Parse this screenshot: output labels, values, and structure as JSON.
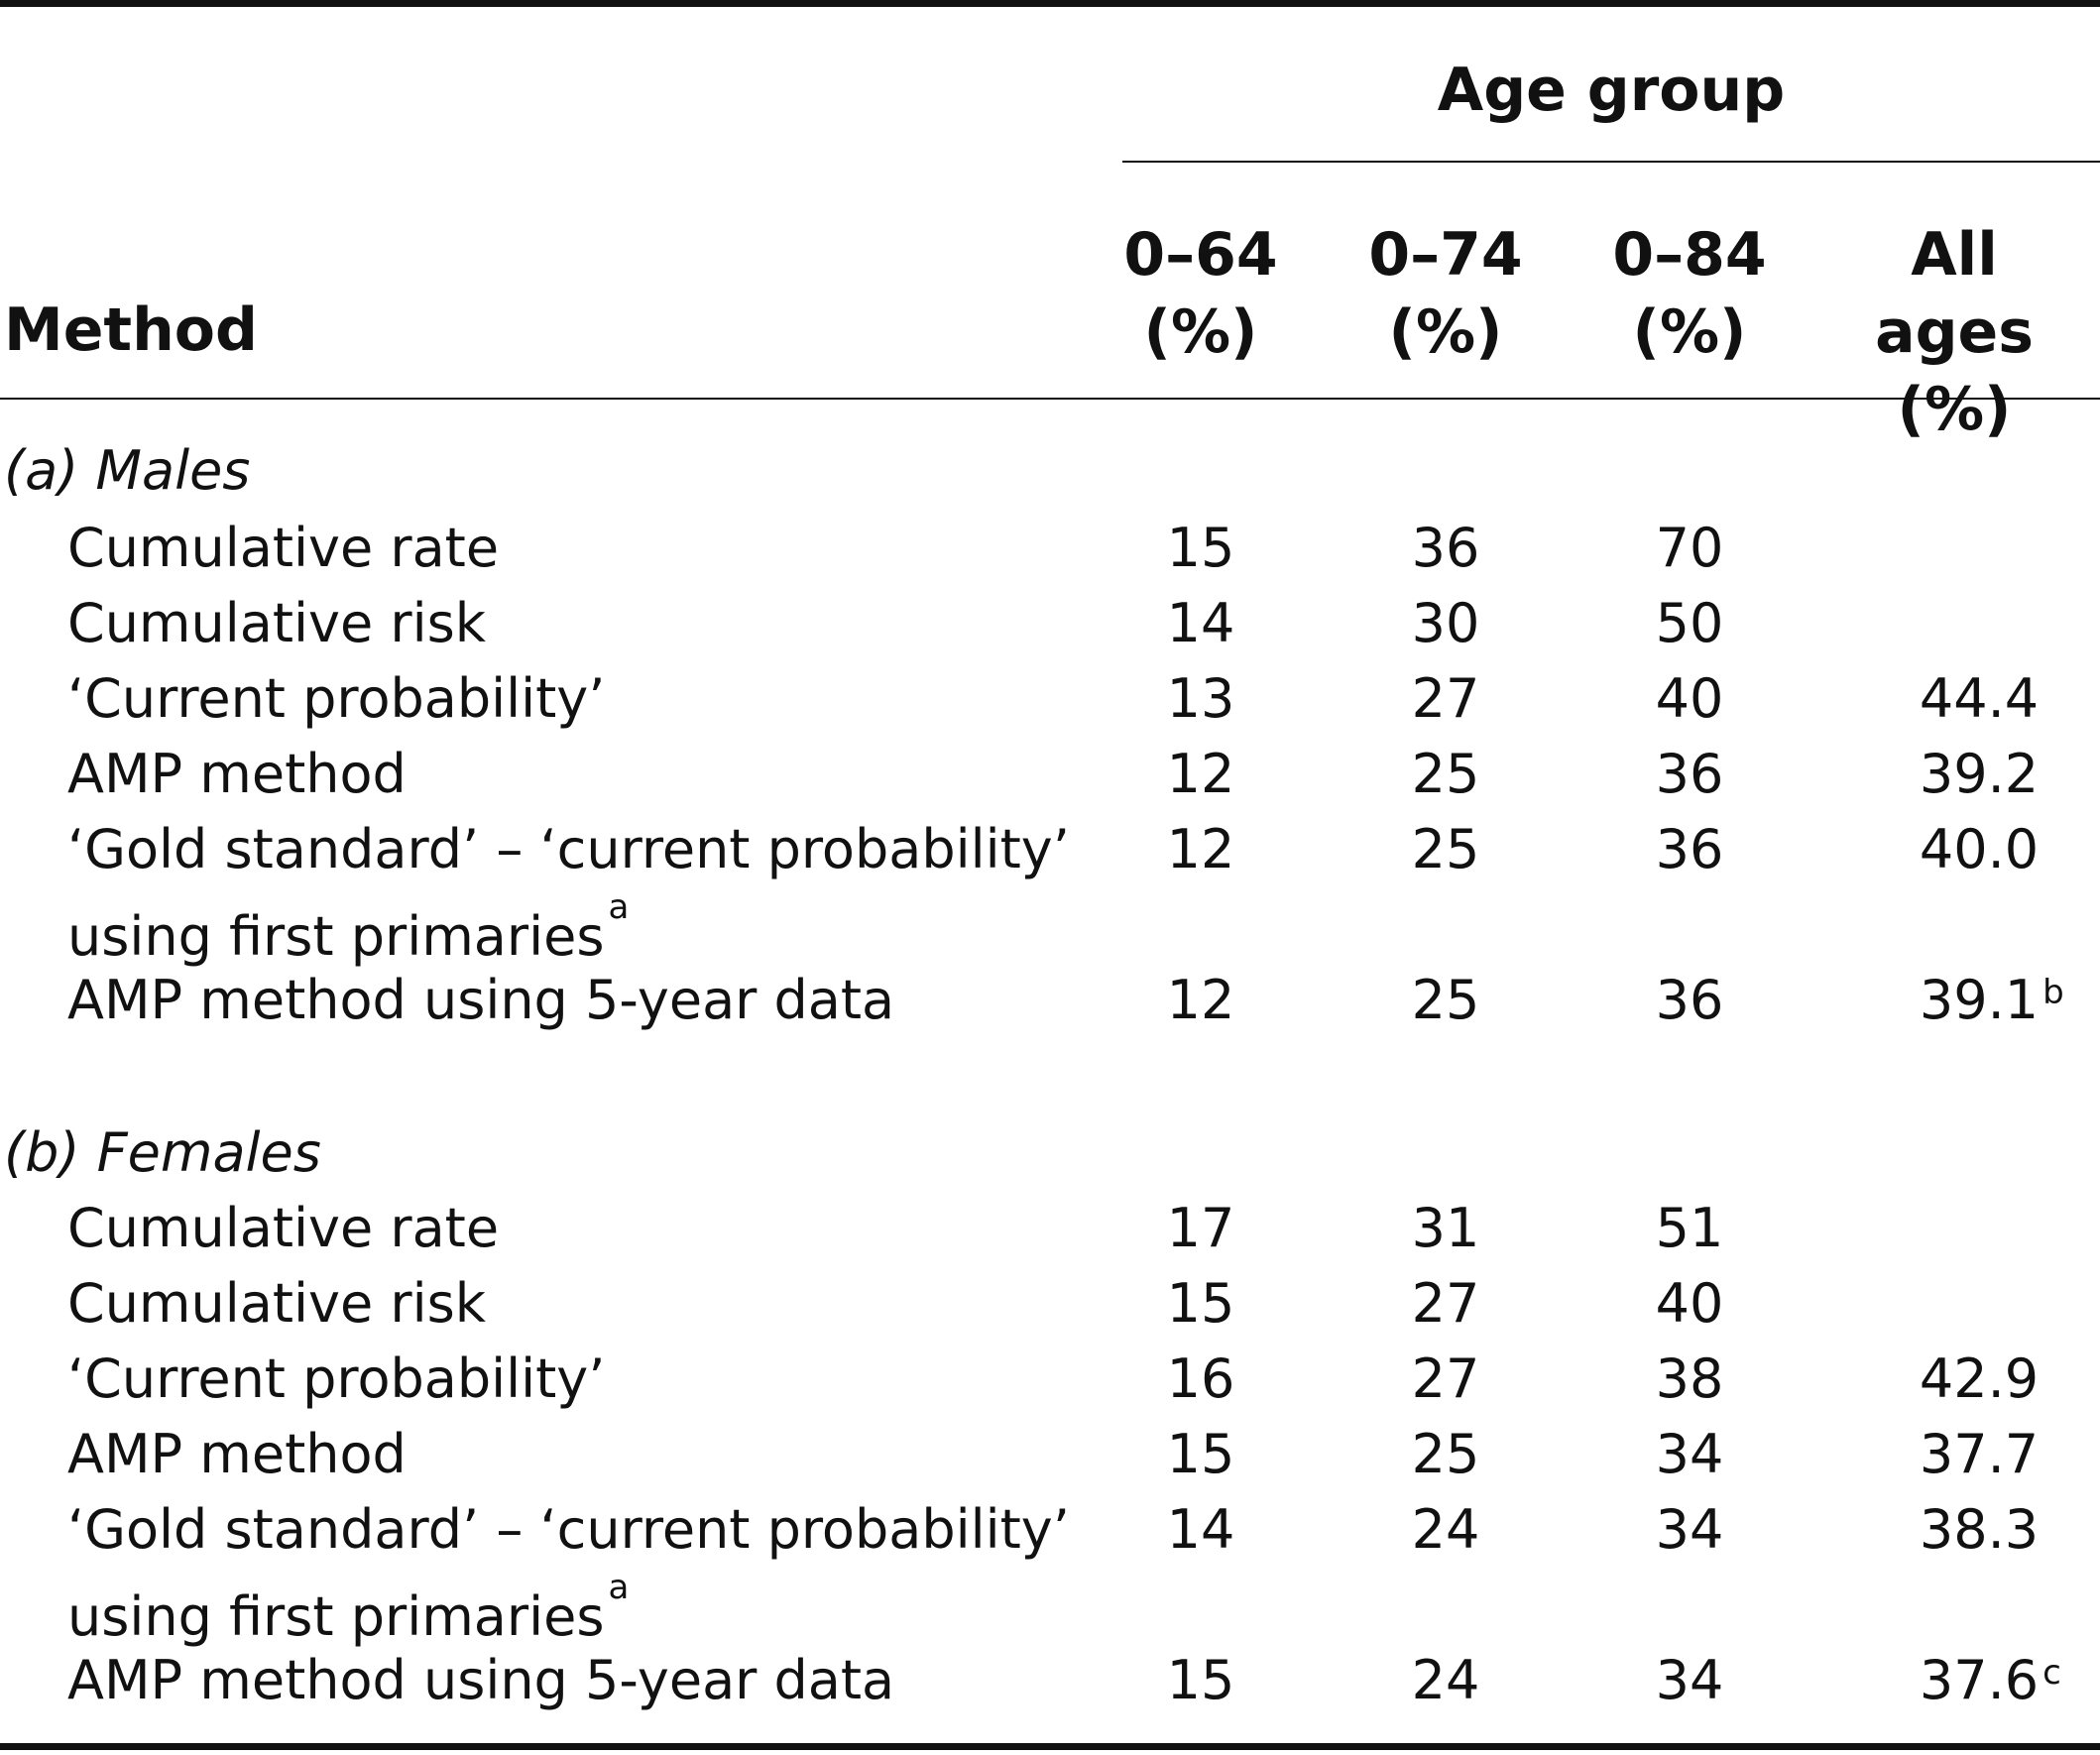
{
  "header": {
    "group_title": "Age group",
    "method_label": "Method",
    "columns": [
      {
        "range": "0–64",
        "unit": "(%)"
      },
      {
        "range": "0–74",
        "unit": "(%)"
      },
      {
        "range": "0–84",
        "unit": "(%)"
      },
      {
        "range": "All ages",
        "unit": "(%)"
      }
    ]
  },
  "sections": [
    {
      "title": "(a) Males",
      "rows": [
        {
          "label": "Cumulative rate",
          "values": [
            "15",
            "36",
            "70",
            ""
          ]
        },
        {
          "label": "Cumulative risk",
          "values": [
            "14",
            "30",
            "50",
            ""
          ]
        },
        {
          "label": "‘Current probability’",
          "values": [
            "13",
            "27",
            "40",
            "44.4"
          ]
        },
        {
          "label": "AMP method",
          "values": [
            "12",
            "25",
            "36",
            "39.2"
          ]
        },
        {
          "label": "‘Gold standard’ – ‘current probability’",
          "label_line2": "using first primaries",
          "label_note": "a",
          "values": [
            "12",
            "25",
            "36",
            "40.0"
          ]
        },
        {
          "label": "AMP method using 5-year data",
          "values": [
            "12",
            "25",
            "36",
            "39.1"
          ],
          "value_note": "b"
        }
      ]
    },
    {
      "title": "(b) Females",
      "rows": [
        {
          "label": "Cumulative rate",
          "values": [
            "17",
            "31",
            "51",
            ""
          ]
        },
        {
          "label": "Cumulative risk",
          "values": [
            "15",
            "27",
            "40",
            ""
          ]
        },
        {
          "label": "‘Current probability’",
          "values": [
            "16",
            "27",
            "38",
            "42.9"
          ]
        },
        {
          "label": "AMP method",
          "values": [
            "15",
            "25",
            "34",
            "37.7"
          ]
        },
        {
          "label": "‘Gold standard’ – ‘current probability’",
          "label_line2": "using first primaries",
          "label_note": "a",
          "values": [
            "14",
            "24",
            "34",
            "38.3"
          ]
        },
        {
          "label": "AMP method using 5-year data",
          "values": [
            "15",
            "24",
            "34",
            "37.6"
          ],
          "value_note": "c"
        }
      ]
    }
  ]
}
